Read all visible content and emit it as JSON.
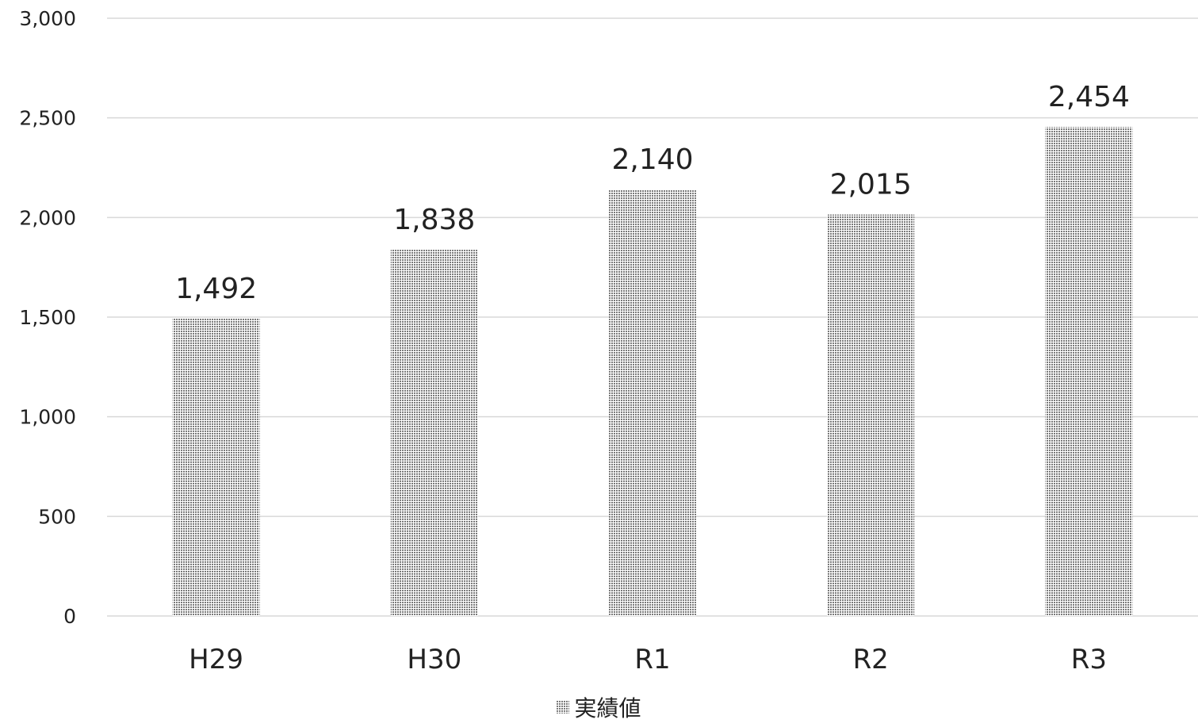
{
  "chart_data": {
    "type": "bar",
    "title": "",
    "xlabel": "",
    "ylabel": "",
    "categories": [
      "H29",
      "H30",
      "R1",
      "R2",
      "R3"
    ],
    "series": [
      {
        "name": "実績値",
        "values": [
          1492,
          1838,
          2140,
          2015,
          2454
        ]
      }
    ],
    "data_labels": [
      "1,492",
      "1,838",
      "2,140",
      "2,015",
      "2,454"
    ],
    "ylim": [
      0,
      3000
    ],
    "yticks": [
      0,
      500,
      1000,
      1500,
      2000,
      2500,
      3000
    ],
    "ytick_labels": [
      "0",
      "500",
      "1,000",
      "1,500",
      "2,000",
      "2,500",
      "3,000"
    ],
    "grid": true,
    "legend_position": "bottom",
    "bar_fill": "dotted-gray",
    "colors": {
      "grid": "#d9d9d9",
      "bar": "#888888",
      "text": "#222222"
    }
  }
}
